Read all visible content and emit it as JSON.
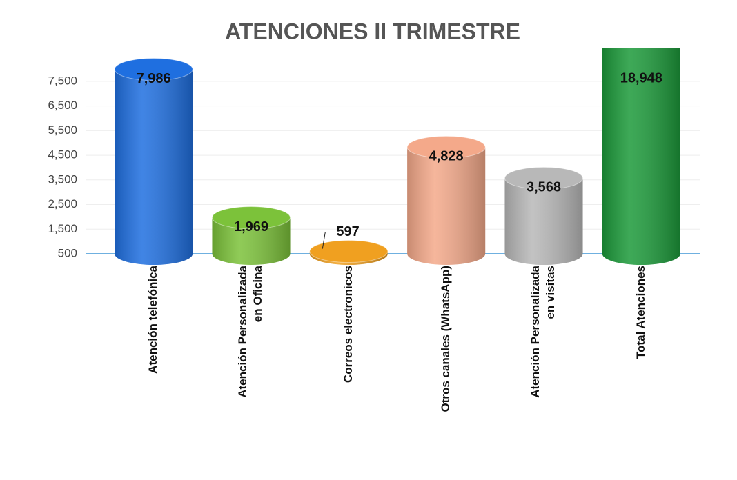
{
  "chart_data": {
    "type": "bar",
    "title": "ATENCIONES II TRIMESTRE",
    "categories": [
      "Atención telefónica",
      "Atención Personalizada en Oficina",
      "Correos electronicos",
      "Otros canales (WhatsApp)",
      "Atención Personalizada en visitas",
      "Total Atenciones"
    ],
    "values": [
      7986,
      1969,
      597,
      4828,
      3568,
      18948
    ],
    "value_labels": [
      "7,986",
      "1,969",
      "597",
      "4,828",
      "3,568",
      "18,948"
    ],
    "colors": [
      "#1f6fe0",
      "#7cc23a",
      "#f0a020",
      "#f4a98a",
      "#b8b8b8",
      "#1c9a3a"
    ],
    "ylim": [
      500,
      8000
    ],
    "yticks": [
      {
        "value": 500,
        "label": "500"
      },
      {
        "value": 1500,
        "label": "1,500"
      },
      {
        "value": 2500,
        "label": "2,500"
      },
      {
        "value": 3500,
        "label": "3,500"
      },
      {
        "value": 4500,
        "label": "4,500"
      },
      {
        "value": 5500,
        "label": "5,500"
      },
      {
        "value": 6500,
        "label": "6,500"
      },
      {
        "value": 7500,
        "label": "7,500"
      }
    ],
    "grid": true
  }
}
